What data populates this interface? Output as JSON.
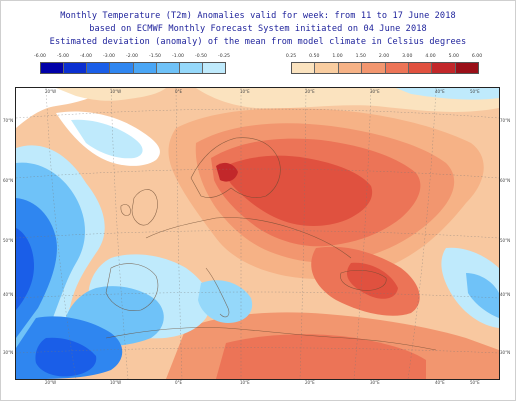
{
  "title": {
    "line1": "Monthly Temperature (T2m) Anomalies valid for week: from 11 to 17 June 2018",
    "line2": "based on ECMWF Monthly Forecast System initiated on 04 June 2018",
    "line3": "Estimated deviation (anomaly) of the mean from model climate in Celsius degrees"
  },
  "legend": {
    "negative": {
      "labels": [
        "-6.00",
        "-5.00",
        "-4.00",
        "-3.00",
        "-2.00",
        "-1.50",
        "-1.00",
        "-0.50",
        "-0.25"
      ],
      "colors": [
        "#0000a8",
        "#0a2fd0",
        "#1a5ee8",
        "#2f86f0",
        "#4aa6f5",
        "#6fc2f8",
        "#95d8fa",
        "#bfeafc"
      ]
    },
    "positive": {
      "labels": [
        "0.25",
        "0.50",
        "1.00",
        "1.50",
        "2.00",
        "3.00",
        "4.00",
        "5.00",
        "6.00"
      ],
      "colors": [
        "#fbe3bf",
        "#f9cda0",
        "#f6b286",
        "#f2966f",
        "#ec7457",
        "#e0513f",
        "#c2272a",
        "#9a0f18"
      ]
    }
  },
  "map": {
    "top_ticks": [
      "20°W",
      "10°W",
      "0°E",
      "10°E",
      "20°E",
      "30°E",
      "40°E",
      "50°E"
    ],
    "bottom_ticks": [
      "20°W",
      "10°W",
      "0°E",
      "10°E",
      "20°E",
      "30°E",
      "40°E",
      "50°E"
    ],
    "left_ticks": [
      "70°N",
      "60°N",
      "50°N",
      "40°N",
      "30°N"
    ],
    "right_ticks": [
      "70°N",
      "60°N",
      "50°N",
      "40°N",
      "30°N"
    ]
  }
}
